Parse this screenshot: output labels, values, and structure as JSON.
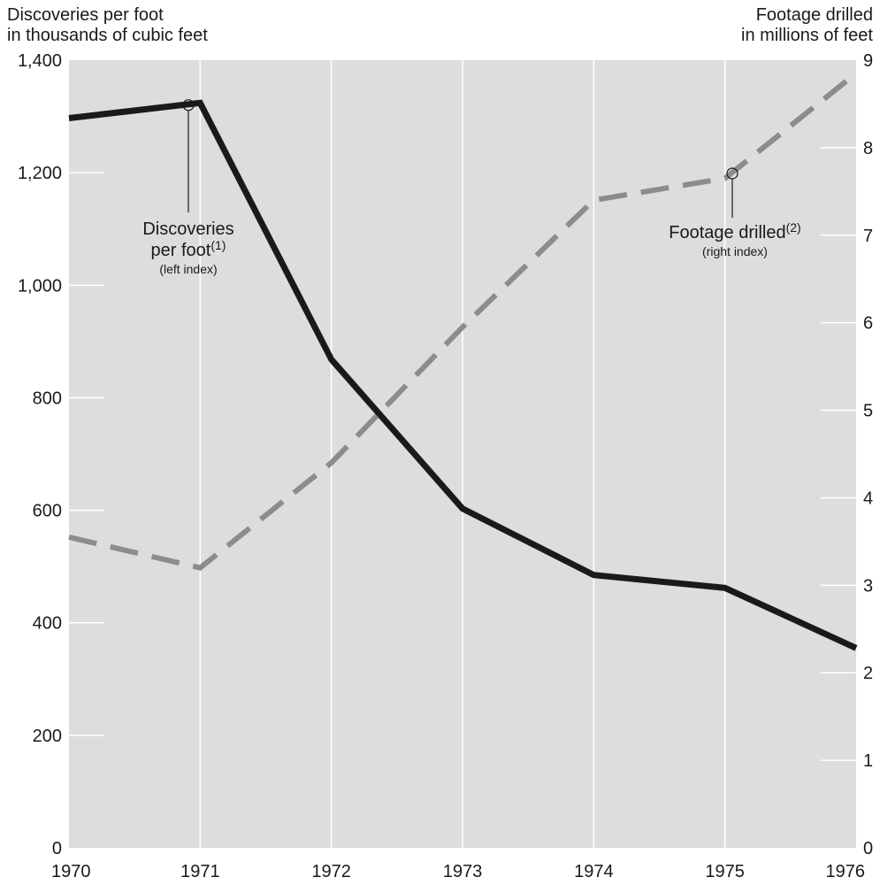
{
  "chart_data": {
    "type": "line",
    "left_title": [
      "Discoveries per foot",
      "in thousands of cubic feet"
    ],
    "right_title": [
      "Footage drilled",
      "in millions of feet"
    ],
    "x": [
      1970,
      1971,
      1972,
      1973,
      1974,
      1975,
      1976
    ],
    "x_tick_labels": [
      "1970",
      "1971",
      "1972",
      "1973",
      "1974",
      "1975",
      "1976"
    ],
    "left_axis": {
      "range": [
        0,
        1400
      ],
      "ticks": [
        "0",
        "200",
        "400",
        "600",
        "800",
        "1,000",
        "1,200",
        "1,400"
      ]
    },
    "right_axis": {
      "range": [
        0,
        9
      ],
      "ticks": [
        "0",
        "1",
        "2",
        "3",
        "4",
        "5",
        "6",
        "7",
        "8",
        "9"
      ]
    },
    "grid": "vertical",
    "background": "#dcdddf",
    "series": [
      {
        "name": "Discoveries per foot",
        "axis": "left",
        "style": "solid",
        "color": "#1a1a1a",
        "x": [
          1970,
          1971,
          1972,
          1973,
          1974,
          1975,
          1976
        ],
        "values": [
          1297,
          1324,
          868,
          603,
          485,
          462,
          355
        ],
        "label": {
          "lines": [
            "Discoveries",
            "per foot"
          ],
          "sup": "(1)",
          "note": "(left index)"
        }
      },
      {
        "name": "Footage drilled",
        "axis": "right",
        "style": "dashed",
        "color": "#8c8c8c",
        "x": [
          1970,
          1971,
          1972,
          1973,
          1974,
          1975,
          1976
        ],
        "values": [
          3.55,
          3.2,
          4.4,
          5.95,
          7.4,
          7.65,
          8.85
        ],
        "label": {
          "lines": [
            "Footage drilled"
          ],
          "sup": "(2)",
          "note": "(right index)"
        }
      }
    ]
  }
}
